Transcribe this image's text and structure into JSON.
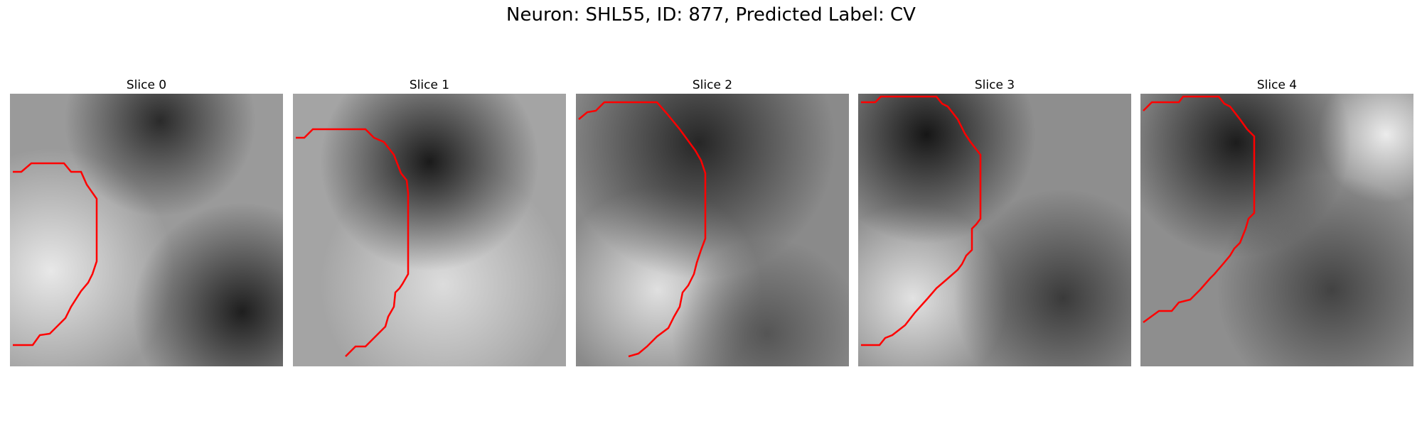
{
  "figure": {
    "title": "Neuron: SHL55, ID: 877, Predicted Label: CV",
    "contour_color": "#ff0000"
  },
  "slices": [
    {
      "label": "Slice 0"
    },
    {
      "label": "Slice 1"
    },
    {
      "label": "Slice 2"
    },
    {
      "label": "Slice 3"
    },
    {
      "label": "Slice 4"
    }
  ]
}
